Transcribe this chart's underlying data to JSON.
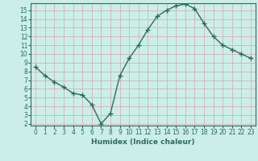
{
  "xlabel": "Humidex (Indice chaleur)",
  "x": [
    0,
    1,
    2,
    3,
    4,
    5,
    6,
    7,
    8,
    9,
    10,
    11,
    12,
    13,
    14,
    15,
    16,
    17,
    18,
    19,
    20,
    21,
    22,
    23
  ],
  "y": [
    8.5,
    7.5,
    6.8,
    6.2,
    5.5,
    5.3,
    4.2,
    2.0,
    3.2,
    7.5,
    9.5,
    11.0,
    12.8,
    14.3,
    15.0,
    15.5,
    15.7,
    15.2,
    13.5,
    12.0,
    11.0,
    10.5,
    10.0,
    9.5
  ],
  "line_color": "#2e6b5e",
  "marker": "+",
  "marker_size": 4,
  "bg_color": "#cceee8",
  "grid_color": "#d8b0b0",
  "ylim": [
    1.8,
    15.8
  ],
  "xlim": [
    -0.5,
    23.5
  ],
  "yticks": [
    2,
    3,
    4,
    5,
    6,
    7,
    8,
    9,
    10,
    11,
    12,
    13,
    14,
    15
  ],
  "xticks": [
    0,
    1,
    2,
    3,
    4,
    5,
    6,
    7,
    8,
    9,
    10,
    11,
    12,
    13,
    14,
    15,
    16,
    17,
    18,
    19,
    20,
    21,
    22,
    23
  ],
  "tick_fontsize": 5.5,
  "xlabel_fontsize": 6.5
}
